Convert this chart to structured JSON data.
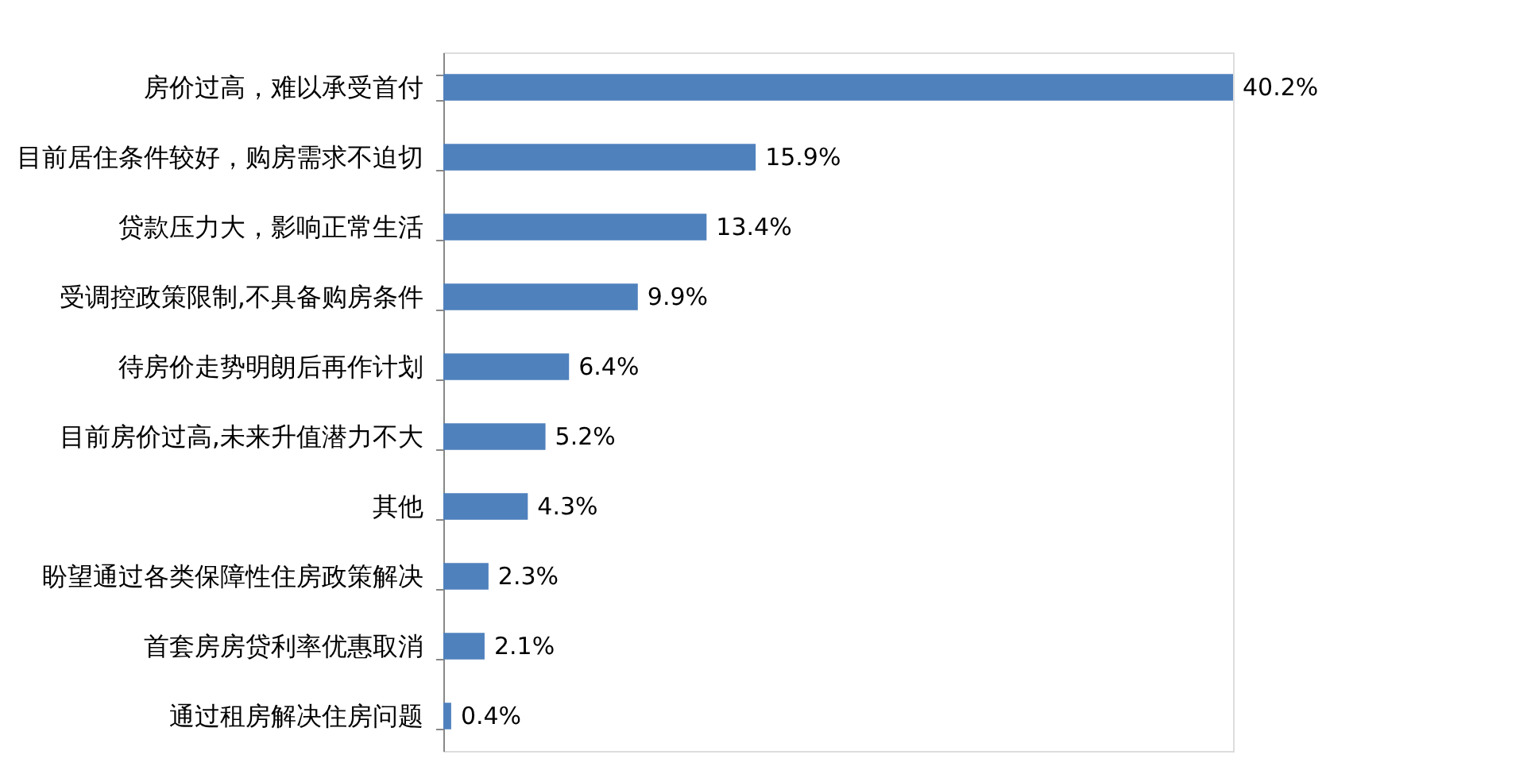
{
  "chart_data": {
    "type": "bar",
    "orientation": "horizontal",
    "categories": [
      "房价过高，难以承受首付",
      "目前居住条件较好，购房需求不迫切",
      "贷款压力大，影响正常生活",
      "受调控政策限制,不具备购房条件",
      "待房价走势明朗后再作计划",
      "目前房价过高,未来升值潜力不大",
      "其他",
      "盼望通过各类保障性住房政策解决",
      "首套房房贷利率优惠取消",
      "通过租房解决住房问题"
    ],
    "values": [
      40.2,
      15.9,
      13.4,
      9.9,
      6.4,
      5.2,
      4.3,
      2.3,
      2.1,
      0.4
    ],
    "value_labels": [
      "40.2%",
      "15.9%",
      "13.4%",
      "9.9%",
      "6.4%",
      "5.2%",
      "4.3%",
      "2.3%",
      "2.1%",
      "0.4%"
    ],
    "color": "#4f81bd"
  }
}
